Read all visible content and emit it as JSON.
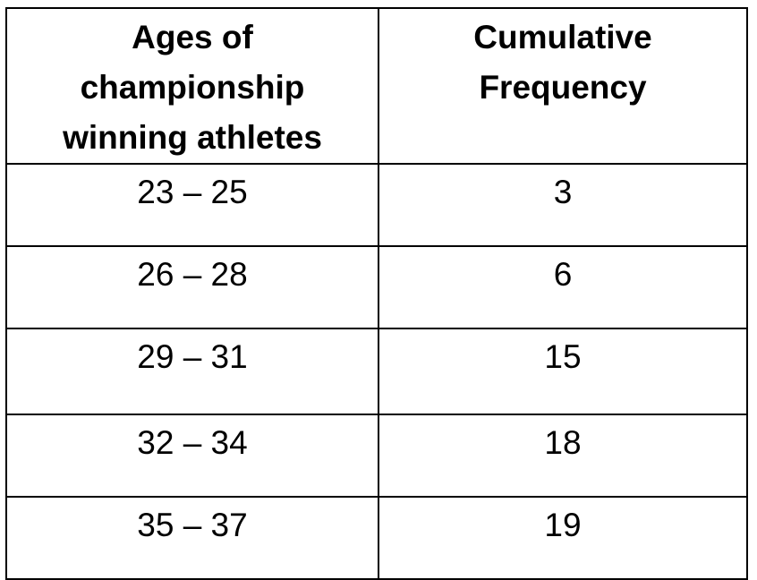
{
  "chart_data": {
    "type": "table",
    "columns": [
      [
        "Ages of",
        "championship",
        "winning athletes"
      ],
      [
        "Cumulative",
        "Frequency"
      ]
    ],
    "rows": [
      {
        "age_range": "23 – 25",
        "cumulative_frequency": "3"
      },
      {
        "age_range": "26 – 28",
        "cumulative_frequency": "6"
      },
      {
        "age_range": "29 – 31",
        "cumulative_frequency": "15"
      },
      {
        "age_range": "32 – 34",
        "cumulative_frequency": "18"
      },
      {
        "age_range": "35 – 37",
        "cumulative_frequency": "19"
      }
    ]
  }
}
